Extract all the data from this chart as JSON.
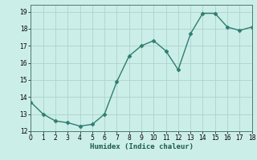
{
  "xlabel": "Humidex (Indice chaleur)",
  "x": [
    0,
    1,
    2,
    3,
    4,
    5,
    6,
    7,
    8,
    9,
    10,
    11,
    12,
    13,
    14,
    15,
    16,
    17,
    18
  ],
  "y": [
    13.7,
    13.0,
    12.6,
    12.5,
    12.3,
    12.4,
    13.0,
    14.9,
    16.4,
    17.0,
    17.3,
    16.7,
    15.6,
    17.7,
    18.9,
    18.9,
    18.1,
    17.9,
    18.1
  ],
  "line_color": "#2e7d72",
  "bg_color": "#cceee8",
  "grid_color": "#aad4cc",
  "xlim": [
    0,
    18
  ],
  "ylim": [
    12.0,
    19.4
  ],
  "xticks": [
    0,
    1,
    2,
    3,
    4,
    5,
    6,
    7,
    8,
    9,
    10,
    11,
    12,
    13,
    14,
    15,
    16,
    17,
    18
  ],
  "yticks": [
    12,
    13,
    14,
    15,
    16,
    17,
    18,
    19
  ],
  "marker": "D",
  "markersize": 2.5,
  "linewidth": 1.0,
  "tick_fontsize": 5.5,
  "xlabel_fontsize": 6.5
}
